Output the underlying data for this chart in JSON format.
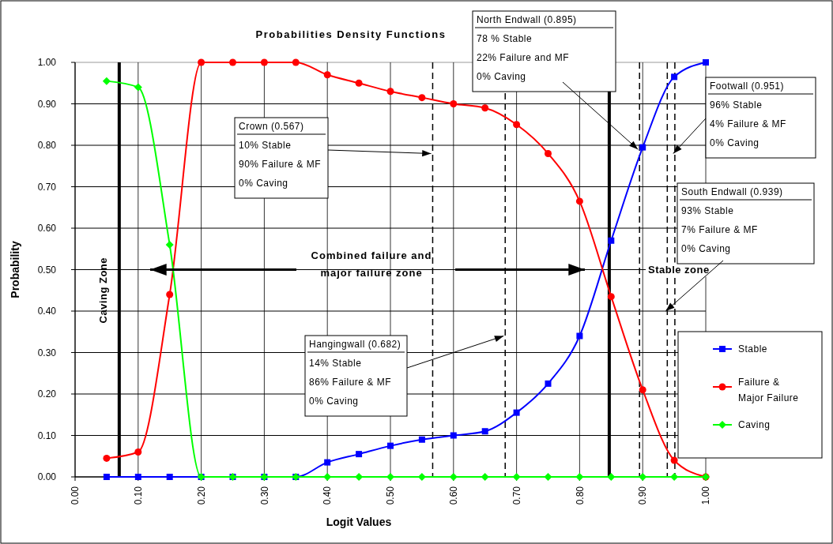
{
  "chart_data": {
    "type": "line",
    "title": "Probabilities Density Functions",
    "xlabel": "Logit Values",
    "ylabel": "Probability",
    "x": [
      0.05,
      0.1,
      0.15,
      0.2,
      0.25,
      0.3,
      0.35,
      0.4,
      0.45,
      0.5,
      0.55,
      0.6,
      0.65,
      0.7,
      0.75,
      0.8,
      0.85,
      0.9,
      0.95,
      1.0
    ],
    "series": [
      {
        "name": "Stable",
        "color": "#0000ff",
        "marker": "square",
        "values": [
          0,
          0,
          0,
          0,
          0,
          0,
          0,
          0.035,
          0.055,
          0.075,
          0.09,
          0.1,
          0.11,
          0.155,
          0.225,
          0.34,
          0.57,
          0.795,
          0.965,
          1.0
        ]
      },
      {
        "name": "Failure & Major Failure",
        "color": "#ff0000",
        "marker": "circle",
        "values": [
          0.045,
          0.06,
          0.44,
          1.0,
          1.0,
          1.0,
          1.0,
          0.97,
          0.95,
          0.93,
          0.915,
          0.9,
          0.89,
          0.85,
          0.78,
          0.665,
          0.435,
          0.21,
          0.04,
          0.0
        ]
      },
      {
        "name": "Caving",
        "color": "#00ff00",
        "marker": "diamond",
        "values": [
          0.955,
          0.94,
          0.56,
          0,
          0,
          0,
          0,
          0,
          0,
          0,
          0,
          0,
          0,
          0,
          0,
          0,
          0,
          0,
          0,
          0
        ]
      }
    ],
    "xlim": [
      0,
      1
    ],
    "ylim": [
      0,
      1
    ],
    "xticks": [
      {
        "value": 0,
        "label": "0.00"
      },
      {
        "value": 0.1,
        "label": "0.10"
      },
      {
        "value": 0.2,
        "label": "0.20"
      },
      {
        "value": 0.3,
        "label": "0.30"
      },
      {
        "value": 0.4,
        "label": "0.40"
      },
      {
        "value": 0.5,
        "label": "0.50"
      },
      {
        "value": 0.6,
        "label": "0.60"
      },
      {
        "value": 0.7,
        "label": "0.70"
      },
      {
        "value": 0.8,
        "label": "0.80"
      },
      {
        "value": 0.9,
        "label": "0.90"
      },
      {
        "value": 1,
        "label": "1.00"
      }
    ],
    "yticks": [
      {
        "value": 0,
        "label": "0.00"
      },
      {
        "value": 0.1,
        "label": "0.10"
      },
      {
        "value": 0.2,
        "label": "0.20"
      },
      {
        "value": 0.3,
        "label": "0.30"
      },
      {
        "value": 0.4,
        "label": "0.40"
      },
      {
        "value": 0.5,
        "label": "0.50"
      },
      {
        "value": 0.6,
        "label": "0.60"
      },
      {
        "value": 0.7,
        "label": "0.70"
      },
      {
        "value": 0.8,
        "label": "0.80"
      },
      {
        "value": 0.9,
        "label": "0.90"
      },
      {
        "value": 1,
        "label": "1.00"
      }
    ],
    "grid": true,
    "legend": "bottom right",
    "ref_lines": [
      {
        "axis": "x",
        "value": 0.07,
        "line_style": "solid",
        "color": "#000000"
      },
      {
        "axis": "x",
        "value": 0.847,
        "line_style": "solid",
        "color": "#000000"
      },
      {
        "axis": "x",
        "value": 0.567,
        "line_style": "dashed",
        "color": "#000000"
      },
      {
        "axis": "x",
        "value": 0.682,
        "line_style": "dashed",
        "color": "#000000"
      },
      {
        "axis": "x",
        "value": 0.895,
        "line_style": "dashed",
        "color": "#000000"
      },
      {
        "axis": "x",
        "value": 0.939,
        "line_style": "dashed",
        "color": "#000000"
      },
      {
        "axis": "x",
        "value": 0.951,
        "line_style": "dashed",
        "color": "#000000"
      }
    ],
    "annotations": [
      "Caving Zone",
      "Combined failure and major failure zone",
      "Stable zone",
      {
        "text": "Crown (0.567)\n10% Stable\n90% Failure & MF\n0% Caving",
        "x": 0.567,
        "y": 0.78
      },
      {
        "text": "Hangingwall (0.682)\n14% Stable\n86% Failure & MF\n0% Caving",
        "x": 0.682,
        "y": 0.34
      },
      {
        "text": "North Endwall (0.895)\n78 % Stable\n22% Failure and MF\n0% Caving",
        "x": 0.895,
        "y": 0.79
      },
      {
        "text": "Footwall (0.951)\n96% Stable\n4% Failure & MF\n0% Caving",
        "x": 0.951,
        "y": 0.78
      },
      {
        "text": "South Endwall (0.939)\n93% Stable\n7% Failure & MF\n0% Caving",
        "x": 0.939,
        "y": 0.4
      }
    ]
  }
}
